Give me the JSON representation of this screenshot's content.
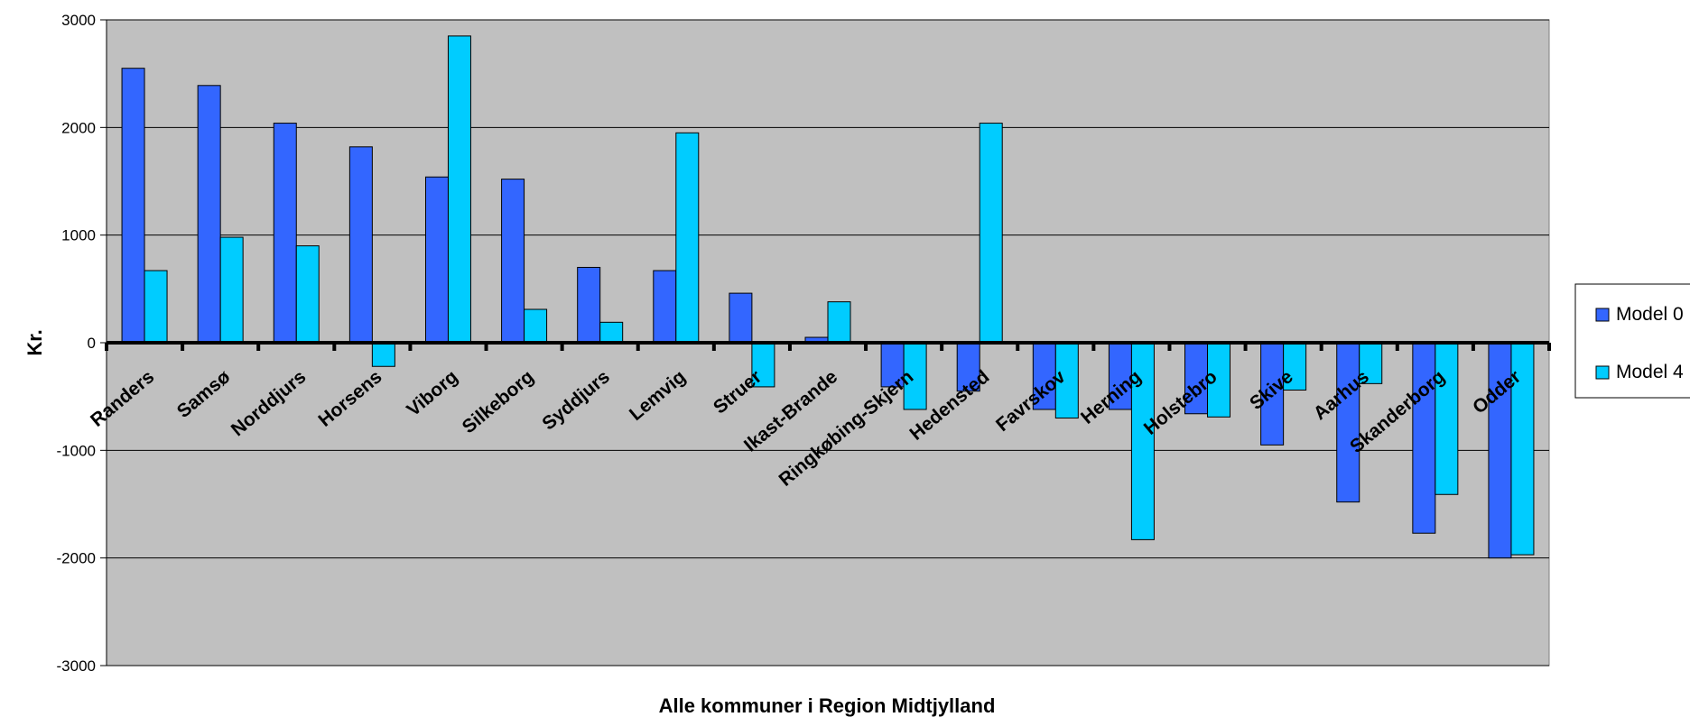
{
  "chart_data": {
    "type": "bar",
    "title": "",
    "xlabel": "Alle kommuner i Region Midtjylland",
    "ylabel": "Kr.",
    "ylim": [
      -3000,
      3000
    ],
    "yticks": [
      3000,
      2000,
      1000,
      0,
      -1000,
      -2000,
      -3000
    ],
    "grid": true,
    "legend_position": "right",
    "plot_background": "#c0c0c0",
    "categories": [
      "Randers",
      "Samsø",
      "Norddjurs",
      "Horsens",
      "Viborg",
      "Silkeborg",
      "Syddjurs",
      "Lemvig",
      "Struer",
      "Ikast-Brande",
      "Ringkøbing-Skjern",
      "Hedensted",
      "Favrskov",
      "Herning",
      "Holstebro",
      "Skive",
      "Aarhus",
      "Skanderborg",
      "Odder"
    ],
    "series": [
      {
        "name": "Model 0",
        "color": "#3366ff",
        "values": [
          2550,
          2390,
          2040,
          1820,
          1540,
          1520,
          700,
          670,
          460,
          50,
          -410,
          -450,
          -620,
          -620,
          -660,
          -950,
          -1480,
          -1770,
          -2000
        ]
      },
      {
        "name": "Model 4",
        "color": "#00ccff",
        "values": [
          670,
          980,
          900,
          -220,
          2850,
          310,
          190,
          1950,
          -410,
          380,
          -620,
          2040,
          -700,
          -1830,
          -690,
          -440,
          -380,
          -1410,
          -1970
        ]
      }
    ]
  }
}
